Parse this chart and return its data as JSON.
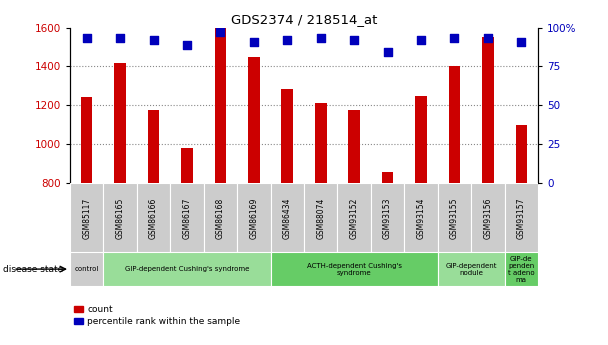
{
  "title": "GDS2374 / 218514_at",
  "samples": [
    "GSM85117",
    "GSM86165",
    "GSM86166",
    "GSM86167",
    "GSM86168",
    "GSM86169",
    "GSM86434",
    "GSM88074",
    "GSM93152",
    "GSM93153",
    "GSM93154",
    "GSM93155",
    "GSM93156",
    "GSM93157"
  ],
  "counts": [
    1240,
    1420,
    1175,
    980,
    1600,
    1450,
    1285,
    1210,
    1175,
    855,
    1245,
    1400,
    1550,
    1100
  ],
  "percentiles": [
    93,
    93,
    92,
    89,
    97,
    91,
    92,
    93,
    92,
    84,
    92,
    93,
    93,
    91
  ],
  "ylim_left": [
    800,
    1600
  ],
  "ylim_right": [
    0,
    100
  ],
  "yticks_left": [
    800,
    1000,
    1200,
    1400,
    1600
  ],
  "yticks_right": [
    0,
    25,
    50,
    75,
    100
  ],
  "bar_color": "#cc0000",
  "dot_color": "#0000bb",
  "grid_color": "#888888",
  "bg_color": "#ffffff",
  "disease_groups": [
    {
      "label": "control",
      "start": 0,
      "end": 1,
      "color": "#cccccc"
    },
    {
      "label": "GIP-dependent Cushing's syndrome",
      "start": 1,
      "end": 6,
      "color": "#99dd99"
    },
    {
      "label": "ACTH-dependent Cushing's\nsyndrome",
      "start": 6,
      "end": 11,
      "color": "#66cc66"
    },
    {
      "label": "GIP-dependent\nnodule",
      "start": 11,
      "end": 13,
      "color": "#99dd99"
    },
    {
      "label": "GIP-de\npenden\nt adeno\nma",
      "start": 13,
      "end": 14,
      "color": "#66cc66"
    }
  ],
  "xlabel_disease": "disease state",
  "legend_count": "count",
  "legend_percentile": "percentile rank within the sample",
  "bar_width": 0.35,
  "dot_size": 28
}
